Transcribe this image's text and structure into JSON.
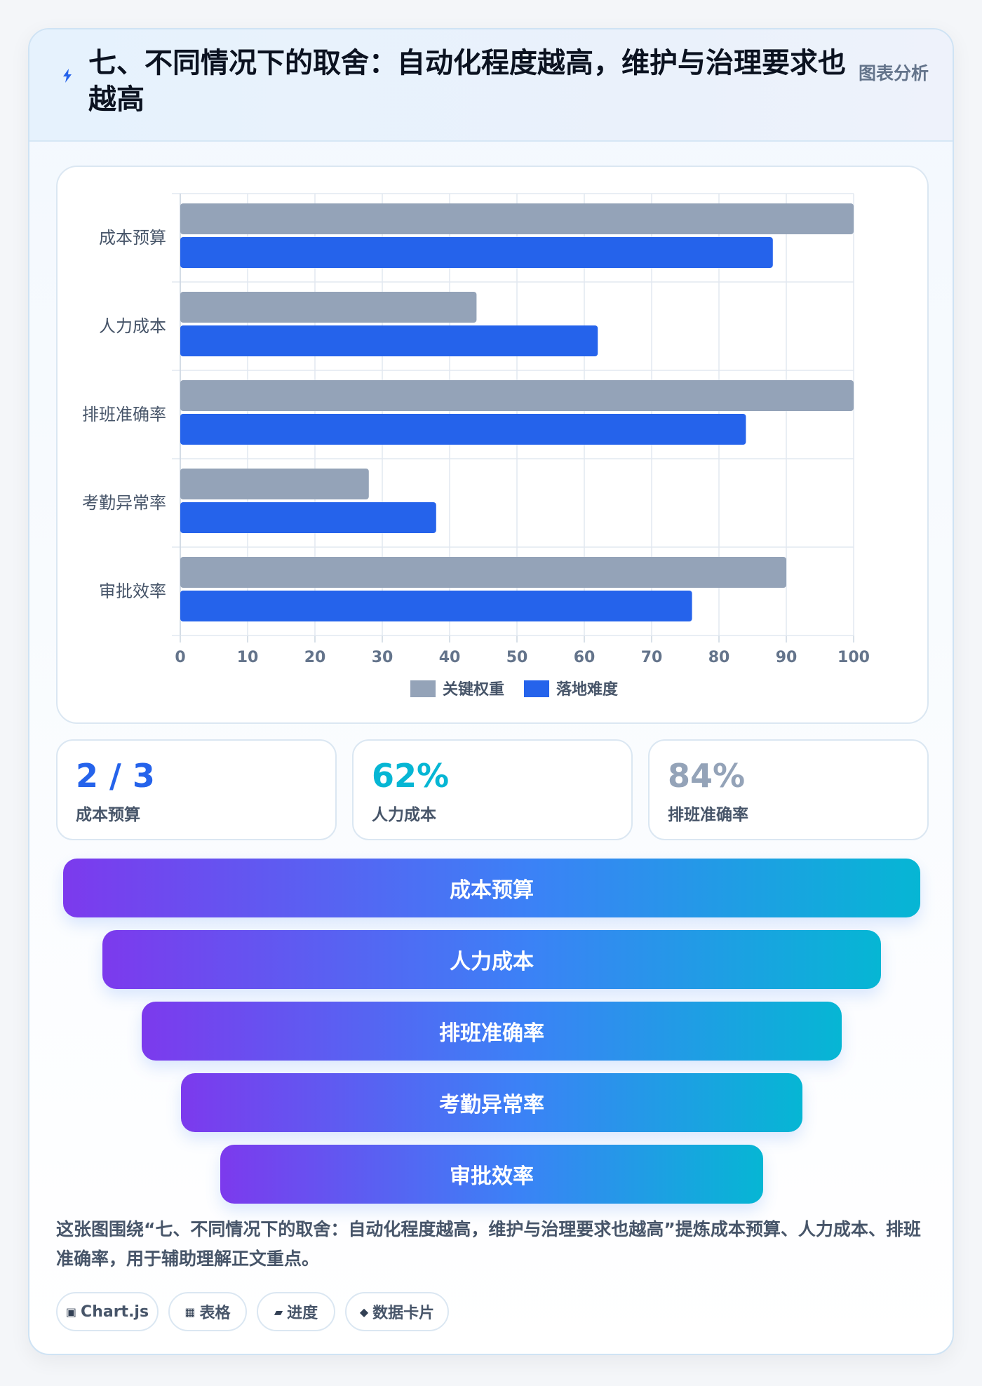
{
  "header": {
    "title": "七、不同情况下的取舍：自动化程度越高，维护与治理要求也越高",
    "tag": "图表分析",
    "icon": "lightning-icon"
  },
  "chart_data": {
    "type": "bar",
    "orientation": "horizontal",
    "categories": [
      "成本预算",
      "人力成本",
      "排班准确率",
      "考勤异常率",
      "审批效率"
    ],
    "series": [
      {
        "name": "关键权重",
        "color": "#94a3b8",
        "values": [
          100,
          44,
          100,
          28,
          90
        ]
      },
      {
        "name": "落地难度",
        "color": "#2563eb",
        "values": [
          88,
          62,
          84,
          38,
          76
        ]
      }
    ],
    "xlim": [
      0,
      100
    ],
    "xticks": [
      0,
      10,
      20,
      30,
      40,
      50,
      60,
      70,
      80,
      90,
      100
    ],
    "grid": true,
    "legend_position": "bottom"
  },
  "stats": [
    {
      "value": "2 / 3",
      "label": "成本预算",
      "color": "#2563eb"
    },
    {
      "value": "62%",
      "label": "人力成本",
      "color": "#06b6d4"
    },
    {
      "value": "84%",
      "label": "排班准确率",
      "color": "#94a3b8"
    }
  ],
  "funnel": [
    "成本预算",
    "人力成本",
    "排班准确率",
    "考勤异常率",
    "审批效率"
  ],
  "description": "这张图围绕“七、不同情况下的取舍：自动化程度越高，维护与治理要求也越高”提炼成本预算、人力成本、排班准确率，用于辅助理解正文重点。",
  "tags": [
    {
      "icon": "▣",
      "label": "Chart.js",
      "icon_name": "chart-icon"
    },
    {
      "icon": "▦",
      "label": "表格",
      "icon_name": "table-icon"
    },
    {
      "icon": "▰",
      "label": "进度",
      "icon_name": "progress-icon"
    },
    {
      "icon": "◆",
      "label": "数据卡片",
      "icon_name": "diamond-icon"
    }
  ]
}
